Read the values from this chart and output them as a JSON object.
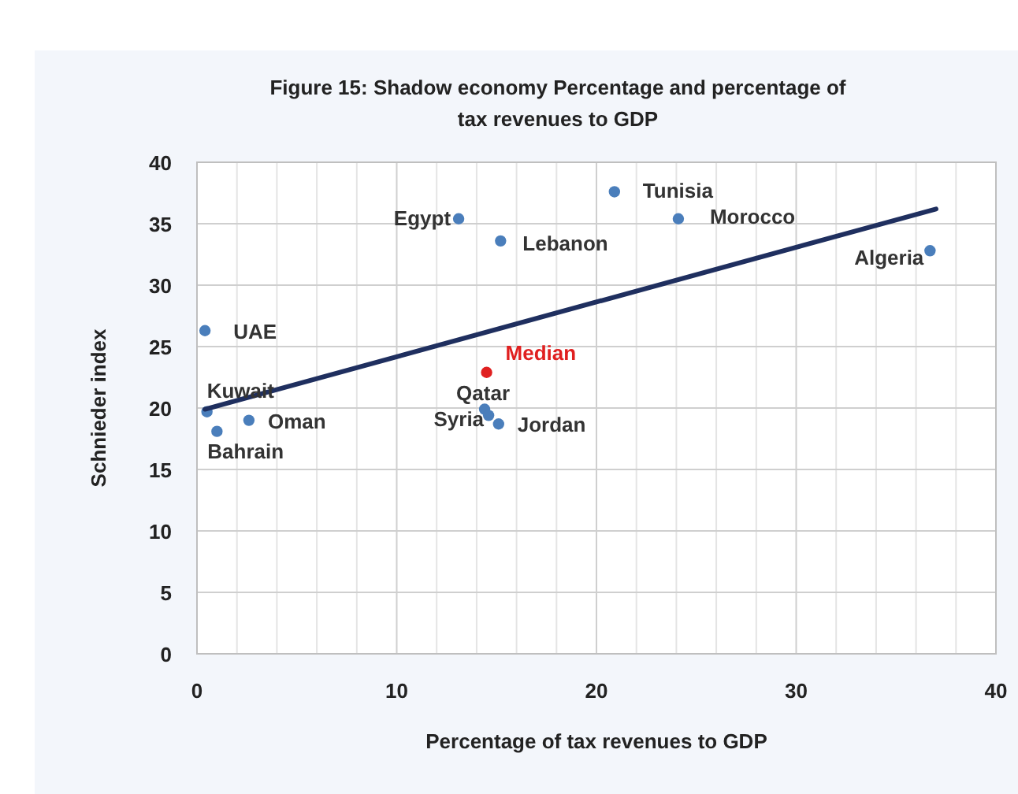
{
  "chart_data": {
    "type": "scatter",
    "title": "Figure 15: Shadow economy Percentage and percentage of tax revenues to GDP",
    "xlabel": "Percentage of tax revenues to GDP",
    "ylabel": "Schnieder index",
    "xlim": [
      0,
      40
    ],
    "xticks": [
      0,
      10,
      20,
      30,
      40
    ],
    "ylim": [
      0,
      40
    ],
    "yticks": [
      0,
      5,
      10,
      15,
      20,
      25,
      30,
      35,
      40
    ],
    "grid": true,
    "marker": "circle",
    "series": [
      {
        "color": "#4a7ebb",
        "x": [
          0.4,
          0.5,
          1.0,
          2.6,
          13.1,
          15.2,
          14.4,
          14.6,
          15.1,
          20.9,
          24.1,
          36.7
        ],
        "values": [
          26.3,
          19.7,
          18.1,
          19.0,
          35.4,
          33.6,
          19.9,
          19.4,
          18.7,
          37.6,
          35.4,
          32.8
        ]
      },
      {
        "name": "Median",
        "color": "#e02020",
        "x": [
          14.5
        ],
        "values": [
          22.9
        ]
      },
      {
        "type": "line",
        "color": "#1f2f5f",
        "x": [
          0.4,
          37.0
        ],
        "values": [
          19.9,
          36.2
        ],
        "marker": "none"
      }
    ],
    "annotations": [
      {
        "text": "UAE",
        "x": 0.4,
        "y": 26.3
      },
      {
        "text": "Kuwait",
        "x": 0.5,
        "y": 19.7
      },
      {
        "text": "Bahrain",
        "x": 1.0,
        "y": 18.1
      },
      {
        "text": "Oman",
        "x": 2.6,
        "y": 19.0
      },
      {
        "text": "Egypt",
        "x": 13.1,
        "y": 35.4
      },
      {
        "text": "Lebanon",
        "x": 15.2,
        "y": 33.6
      },
      {
        "text": "Qatar",
        "x": 14.4,
        "y": 19.9
      },
      {
        "text": "Syria",
        "x": 14.6,
        "y": 19.4
      },
      {
        "text": "Jordan",
        "x": 15.1,
        "y": 18.7
      },
      {
        "text": "Tunisia",
        "x": 20.9,
        "y": 37.6
      },
      {
        "text": "Morocco",
        "x": 24.1,
        "y": 35.4
      },
      {
        "text": "Algeria",
        "x": 36.7,
        "y": 32.8
      }
    ]
  }
}
